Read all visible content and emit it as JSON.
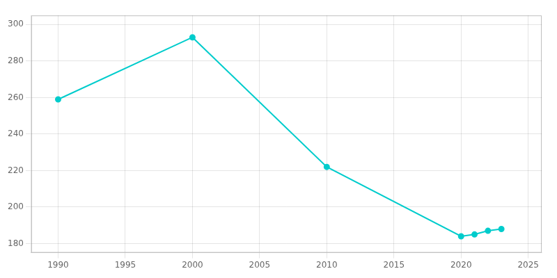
{
  "chart_data": {
    "type": "line",
    "x": [
      1990,
      2000,
      2010,
      2020,
      2021,
      2022,
      2023
    ],
    "values": [
      259,
      293,
      222,
      184,
      185,
      187,
      188
    ],
    "color": "#00CCCC",
    "marker": "circle",
    "xlim": [
      1988,
      2026
    ],
    "ylim": [
      175,
      305
    ],
    "xticks": [
      1990,
      1995,
      2000,
      2005,
      2010,
      2015,
      2020,
      2025
    ],
    "yticks": [
      180,
      200,
      220,
      240,
      260,
      280,
      300
    ],
    "grid": true
  }
}
